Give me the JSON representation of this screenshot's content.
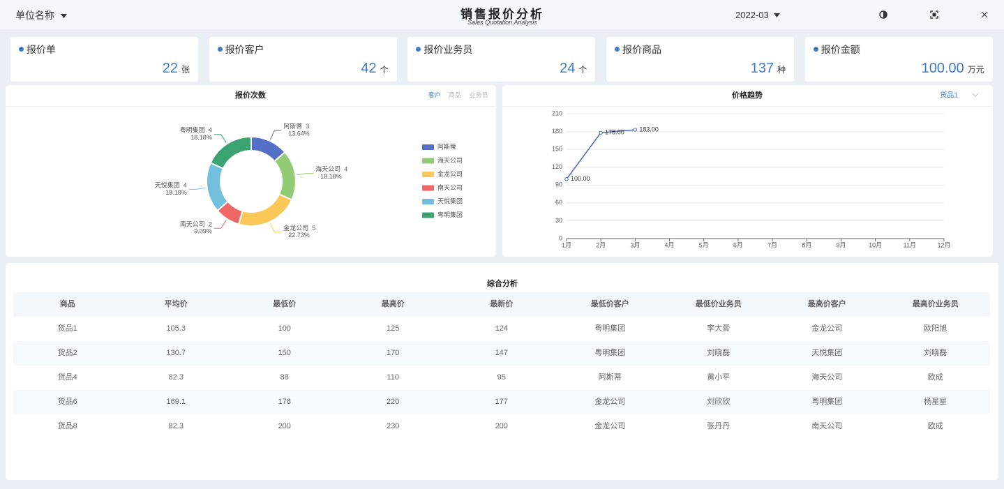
{
  "header": {
    "unit_selector": "单位名称",
    "title": "销售报价分析",
    "subtitle": "Sales Quotation Analysis",
    "period": "2022-03"
  },
  "kpis": [
    {
      "label": "报价单",
      "value": "22",
      "unit": "张"
    },
    {
      "label": "报价客户",
      "value": "42",
      "unit": "个"
    },
    {
      "label": "报价业务员",
      "value": "24",
      "unit": "个"
    },
    {
      "label": "报价商品",
      "value": "137",
      "unit": "种"
    },
    {
      "label": "报价金额",
      "value": "100.00",
      "unit": "万元"
    }
  ],
  "chart_data": [
    {
      "type": "pie",
      "title": "报价次数",
      "tabs": [
        "客户",
        "商品",
        "业务员"
      ],
      "active_tab": 0,
      "categories": [
        "阿斯蒂",
        "海天公司",
        "金龙公司",
        "南天公司",
        "天悦集团",
        "粤明集团"
      ],
      "values": [
        3,
        4,
        5,
        2,
        4,
        4
      ],
      "percent_labels": [
        "13.64%",
        "18.18%",
        "22.73%",
        "9.09%",
        "18.18%",
        "18.18%"
      ],
      "colors": [
        "#5470c6",
        "#91cc75",
        "#fac858",
        "#ee6666",
        "#73c0de",
        "#3ba272"
      ]
    },
    {
      "type": "line",
      "title": "价格趋势",
      "selector": "货品1",
      "categories": [
        "1月",
        "2月",
        "3月",
        "4月",
        "5月",
        "6月",
        "7月",
        "8月",
        "9月",
        "10月",
        "11月",
        "12月"
      ],
      "values": [
        100,
        178,
        183,
        null,
        null,
        null,
        null,
        null,
        null,
        null,
        null,
        null
      ],
      "value_labels": [
        "100.00",
        "178.00",
        "183.00",
        null,
        null,
        null,
        null,
        null,
        null,
        null,
        null,
        null
      ],
      "color": "#4a66c0",
      "ylim": [
        0,
        210
      ],
      "yticks": [
        0,
        30,
        60,
        90,
        120,
        150,
        180,
        210
      ],
      "grid": true
    }
  ],
  "table": {
    "title": "综合分析",
    "columns": [
      "商品",
      "平均价",
      "最低价",
      "最高价",
      "最新价",
      "最低价客户",
      "最低价业务员",
      "最高价客户",
      "最高价业务员"
    ],
    "rows": [
      [
        "货品1",
        "105.3",
        "100",
        "125",
        "124",
        "粤明集团",
        "李大膏",
        "金龙公司",
        "欧阳旭"
      ],
      [
        "货品2",
        "130.7",
        "150",
        "170",
        "147",
        "粤明集团",
        "刘晓磊",
        "天悦集团",
        "刘晓磊"
      ],
      [
        "货品4",
        "82.3",
        "88",
        "110",
        "95",
        "阿斯蒂",
        "黄小平",
        "海天公司",
        "欧成"
      ],
      [
        "货品6",
        "169.1",
        "178",
        "220",
        "177",
        "金龙公司",
        "刘欣欣",
        "粤明集团",
        "杨星星"
      ],
      [
        "货品8",
        "82.3",
        "200",
        "230",
        "200",
        "金龙公司",
        "张丹丹",
        "南天公司",
        "欧成"
      ]
    ]
  }
}
